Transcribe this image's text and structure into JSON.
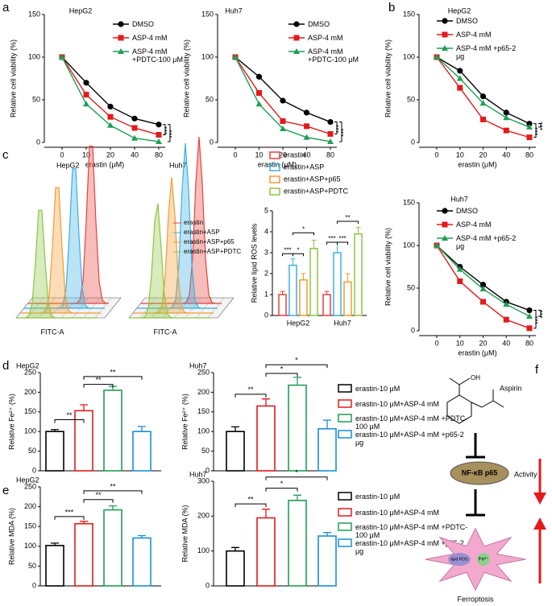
{
  "panels": [
    "a",
    "b",
    "c",
    "d",
    "e",
    "f"
  ],
  "chart_data": [
    {
      "type": "line",
      "title": "HepG2",
      "categories": [
        "0",
        "10",
        "20",
        "40",
        "80"
      ],
      "xlabel": "erastin (μM)",
      "ylabel": "Relative cell viability (%)",
      "ylim": [
        0,
        150
      ],
      "yticks": [
        0,
        50,
        100,
        150
      ],
      "series": [
        {
          "name": "DMSO",
          "color": "#000000",
          "marker": "circle",
          "values": [
            100,
            70,
            42,
            28,
            21
          ]
        },
        {
          "name": "ASP-4 mM",
          "color": "#e31a1c",
          "marker": "square",
          "values": [
            100,
            56,
            30,
            17,
            9
          ]
        },
        {
          "name": "ASP-4 mM +PDTC-100 μM",
          "color": "#1f9e55",
          "marker": "triangle",
          "values": [
            100,
            45,
            20,
            5,
            1
          ]
        }
      ],
      "annotations": [
        "***",
        "***"
      ]
    },
    {
      "type": "line",
      "title": "Huh7",
      "categories": [
        "0",
        "10",
        "20",
        "40",
        "80"
      ],
      "xlabel": "erastin (μM)",
      "ylabel": "Relative cell viability (%)",
      "ylim": [
        0,
        150
      ],
      "yticks": [
        0,
        50,
        100,
        150
      ],
      "series": [
        {
          "name": "DMSO",
          "color": "#000000",
          "marker": "circle",
          "values": [
            100,
            77,
            49,
            35,
            24
          ]
        },
        {
          "name": "ASP-4 mM",
          "color": "#e31a1c",
          "marker": "square",
          "values": [
            100,
            58,
            25,
            19,
            10
          ]
        },
        {
          "name": "ASP-4 mM +PDTC-100 μM",
          "color": "#1f9e55",
          "marker": "triangle",
          "values": [
            100,
            45,
            16,
            6,
            1
          ]
        }
      ],
      "annotations": [
        "***",
        "***"
      ]
    },
    {
      "type": "line",
      "title": "HepG2",
      "categories": [
        "0",
        "10",
        "20",
        "40",
        "80"
      ],
      "xlabel": "erastin (μM)",
      "ylabel": "Relative cell viability (%)",
      "ylim": [
        0,
        150
      ],
      "yticks": [
        0,
        50,
        100,
        150
      ],
      "series": [
        {
          "name": "DMSO",
          "color": "#000000",
          "marker": "circle",
          "values": [
            100,
            84,
            54,
            35,
            22
          ]
        },
        {
          "name": "ASP-4 mM",
          "color": "#e31a1c",
          "marker": "square",
          "values": [
            100,
            64,
            27,
            14,
            6
          ]
        },
        {
          "name": "ASP-4 mM +p65-2 μg",
          "color": "#1f9e55",
          "marker": "triangle",
          "values": [
            100,
            75,
            46,
            29,
            18
          ]
        }
      ],
      "annotations": [
        "***",
        "***"
      ]
    },
    {
      "type": "line",
      "title": "Huh7",
      "categories": [
        "0",
        "10",
        "20",
        "40",
        "80"
      ],
      "xlabel": "erastin (μM)",
      "ylabel": "Relative cell viability (%)",
      "ylim": [
        0,
        150
      ],
      "yticks": [
        0,
        50,
        100,
        150
      ],
      "series": [
        {
          "name": "DMSO",
          "color": "#000000",
          "marker": "circle",
          "values": [
            100,
            75,
            54,
            34,
            24
          ]
        },
        {
          "name": "ASP-4 mM",
          "color": "#e31a1c",
          "marker": "square",
          "values": [
            100,
            58,
            34,
            13,
            3
          ]
        },
        {
          "name": "ASP-4 mM +p65-2 μg",
          "color": "#1f9e55",
          "marker": "triangle",
          "values": [
            100,
            72,
            49,
            31,
            17
          ]
        }
      ],
      "annotations": [
        "***",
        "***"
      ]
    },
    {
      "type": "grouped-bar",
      "categories": [
        "HepG2",
        "Huh7"
      ],
      "ylabel": "Relative lipid ROS levels",
      "ylim": [
        0,
        5
      ],
      "yticks": [
        0,
        1,
        2,
        3,
        4,
        5
      ],
      "series": [
        {
          "name": "erastin",
          "color": "#e8413c",
          "values": [
            1.0,
            1.0
          ],
          "errors": [
            0.15,
            0.15
          ]
        },
        {
          "name": "erastin+ASP",
          "color": "#3ab0e2",
          "values": [
            2.4,
            3.0
          ],
          "errors": [
            0.3,
            0.5
          ]
        },
        {
          "name": "erastin+ASP+p65",
          "color": "#f39c32",
          "values": [
            1.7,
            1.6
          ],
          "errors": [
            0.3,
            0.4
          ]
        },
        {
          "name": "erastin+ASP+PDTC",
          "color": "#8dc63f",
          "values": [
            3.2,
            3.9
          ],
          "errors": [
            0.4,
            0.3
          ]
        }
      ],
      "annotations": [
        "***",
        "*",
        "*",
        "***",
        "***",
        "**"
      ]
    },
    {
      "type": "bar",
      "title": "HepG2",
      "ylabel": "Relative Fe²⁺ (%)",
      "categories": [
        "erastin-10 μM",
        "erastin-10 μM+ASP-4 mM",
        "erastin-10 μM+ASP-4 mM +PDTC-100 μM",
        "erastin-10 μM+ASP-4 mM +p65-2 μg"
      ],
      "colors": [
        "#000000",
        "#e31a1c",
        "#1f9e55",
        "#1a8fd8"
      ],
      "values": [
        100,
        153,
        205,
        100
      ],
      "errors": [
        5,
        15,
        10,
        13
      ],
      "ylim": [
        0,
        250
      ],
      "yticks": [
        0,
        50,
        100,
        150,
        200,
        250
      ],
      "annotations": [
        "**",
        "**",
        "**"
      ]
    },
    {
      "type": "bar",
      "title": "Huh7",
      "ylabel": "Relative Fe²⁺ (%)",
      "categories": [
        "erastin-10 μM",
        "erastin-10 μM+ASP-4 mM",
        "erastin-10 μM+ASP-4 mM +PDTC-100 μM",
        "erastin-10 μM+ASP-4 mM +p65-2 μg"
      ],
      "colors": [
        "#000000",
        "#e31a1c",
        "#1f9e55",
        "#1a8fd8"
      ],
      "values": [
        100,
        165,
        218,
        107
      ],
      "errors": [
        12,
        18,
        20,
        22
      ],
      "ylim": [
        0,
        250
      ],
      "yticks": [
        0,
        50,
        100,
        150,
        200,
        250
      ],
      "annotations": [
        "**",
        "*",
        "*"
      ]
    },
    {
      "type": "bar",
      "title": "HepG2",
      "ylabel": "Relative MDA (%)",
      "categories": [
        "erastin-10 μM",
        "erastin-10 μM+ASP-4 mM",
        "erastin-10 μM+ASP-4 mM +PDTC-100 μM",
        "erastin-10 μM+ASP-4 mM +p65-2 μg"
      ],
      "colors": [
        "#000000",
        "#e31a1c",
        "#1f9e55",
        "#1a8fd8"
      ],
      "values": [
        102,
        157,
        192,
        121
      ],
      "errors": [
        6,
        6,
        10,
        6
      ],
      "ylim": [
        0,
        250
      ],
      "yticks": [
        0,
        50,
        100,
        150,
        200,
        250
      ],
      "annotations": [
        "***",
        "**",
        "**"
      ]
    },
    {
      "type": "bar",
      "title": "Huh7",
      "ylabel": "Relative MDA (%)",
      "categories": [
        "erastin-10 μM",
        "erastin-10 μM+ASP-4 mM",
        "erastin-10 μM+ASP-4 mM +PDTC-100 μM",
        "erastin-10 μM+ASP-4 mM +p65-2 μg"
      ],
      "colors": [
        "#000000",
        "#e31a1c",
        "#1f9e55",
        "#1a8fd8"
      ],
      "values": [
        100,
        195,
        245,
        143
      ],
      "errors": [
        10,
        25,
        15,
        10
      ],
      "ylim": [
        0,
        300
      ],
      "yticks": [
        0,
        100,
        200,
        300
      ],
      "annotations": [
        "**",
        "*",
        "*"
      ]
    }
  ],
  "flow": {
    "titles": [
      "HepG2",
      "Huh7"
    ],
    "xlabel": "FITC-A",
    "legend": [
      "erastin",
      "erastin+ASP",
      "erastin+ASP+p65",
      "erastin+ASP+PDTC"
    ]
  },
  "diagram": {
    "drug": "Aspirin",
    "oh": "OH",
    "node": "NF-κB p65",
    "activity": "Activity",
    "ros": "lipid ROS",
    "iron": "Fe²⁺",
    "outcome": "Ferroptosis"
  }
}
